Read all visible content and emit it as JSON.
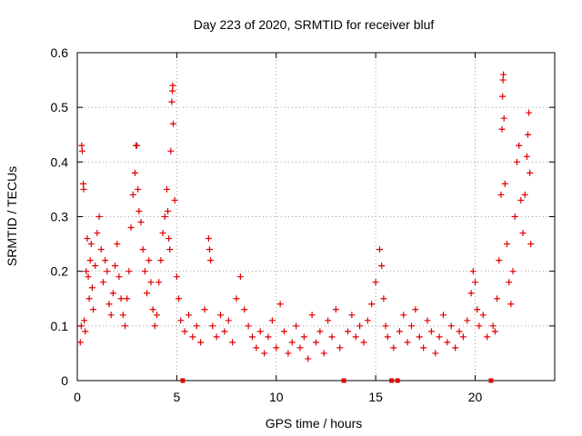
{
  "chart_data": {
    "type": "scatter",
    "title": "Day 223 of 2020, SRMTID for receiver bluf",
    "xlabel": "GPS time / hours",
    "ylabel": "SRMTID / TECUs",
    "xlim": [
      0,
      24
    ],
    "ylim": [
      0,
      0.6
    ],
    "x_ticks": [
      {
        "value": 0,
        "label": "0"
      },
      {
        "value": 5,
        "label": "5"
      },
      {
        "value": 10,
        "label": "10"
      },
      {
        "value": 15,
        "label": "15"
      },
      {
        "value": 20,
        "label": "20"
      }
    ],
    "y_ticks": [
      {
        "value": 0,
        "label": "0"
      },
      {
        "value": 0.1,
        "label": "0.1"
      },
      {
        "value": 0.2,
        "label": "0.2"
      },
      {
        "value": 0.3,
        "label": "0.3"
      },
      {
        "value": 0.4,
        "label": "0.4"
      },
      {
        "value": 0.5,
        "label": "0.5"
      },
      {
        "value": 0.6,
        "label": "0.6"
      }
    ],
    "grid": true,
    "marker": "plus",
    "color": "#e00000",
    "zero_markers": [
      5.3,
      13.4,
      15.8,
      16.1,
      20.8
    ],
    "series": [
      {
        "name": "SRMTID",
        "points": [
          [
            0.15,
            0.07
          ],
          [
            0.2,
            0.1
          ],
          [
            0.22,
            0.43
          ],
          [
            0.25,
            0.42
          ],
          [
            0.3,
            0.36
          ],
          [
            0.32,
            0.35
          ],
          [
            0.35,
            0.11
          ],
          [
            0.4,
            0.09
          ],
          [
            0.45,
            0.2
          ],
          [
            0.5,
            0.26
          ],
          [
            0.55,
            0.19
          ],
          [
            0.6,
            0.15
          ],
          [
            0.65,
            0.22
          ],
          [
            0.7,
            0.25
          ],
          [
            0.75,
            0.17
          ],
          [
            0.8,
            0.13
          ],
          [
            0.9,
            0.21
          ],
          [
            1.0,
            0.27
          ],
          [
            1.1,
            0.3
          ],
          [
            1.2,
            0.24
          ],
          [
            1.3,
            0.18
          ],
          [
            1.4,
            0.22
          ],
          [
            1.5,
            0.2
          ],
          [
            1.6,
            0.14
          ],
          [
            1.7,
            0.12
          ],
          [
            1.8,
            0.16
          ],
          [
            1.9,
            0.21
          ],
          [
            2.0,
            0.25
          ],
          [
            2.1,
            0.19
          ],
          [
            2.2,
            0.15
          ],
          [
            2.3,
            0.12
          ],
          [
            2.4,
            0.1
          ],
          [
            2.5,
            0.15
          ],
          [
            2.6,
            0.2
          ],
          [
            2.7,
            0.28
          ],
          [
            2.8,
            0.34
          ],
          [
            2.9,
            0.38
          ],
          [
            2.95,
            0.43
          ],
          [
            3.0,
            0.43
          ],
          [
            3.05,
            0.35
          ],
          [
            3.1,
            0.31
          ],
          [
            3.2,
            0.29
          ],
          [
            3.3,
            0.24
          ],
          [
            3.4,
            0.2
          ],
          [
            3.5,
            0.16
          ],
          [
            3.6,
            0.22
          ],
          [
            3.7,
            0.18
          ],
          [
            3.8,
            0.13
          ],
          [
            3.9,
            0.1
          ],
          [
            4.0,
            0.12
          ],
          [
            4.1,
            0.18
          ],
          [
            4.2,
            0.22
          ],
          [
            4.3,
            0.27
          ],
          [
            4.4,
            0.3
          ],
          [
            4.5,
            0.35
          ],
          [
            4.55,
            0.31
          ],
          [
            4.6,
            0.26
          ],
          [
            4.65,
            0.24
          ],
          [
            4.7,
            0.42
          ],
          [
            4.75,
            0.51
          ],
          [
            4.78,
            0.53
          ],
          [
            4.8,
            0.54
          ],
          [
            4.82,
            0.47
          ],
          [
            4.9,
            0.33
          ],
          [
            5.0,
            0.19
          ],
          [
            5.1,
            0.15
          ],
          [
            5.2,
            0.11
          ],
          [
            5.4,
            0.09
          ],
          [
            5.6,
            0.12
          ],
          [
            5.8,
            0.08
          ],
          [
            6.0,
            0.1
          ],
          [
            6.2,
            0.07
          ],
          [
            6.4,
            0.13
          ],
          [
            6.6,
            0.26
          ],
          [
            6.65,
            0.24
          ],
          [
            6.7,
            0.22
          ],
          [
            6.8,
            0.1
          ],
          [
            7.0,
            0.08
          ],
          [
            7.2,
            0.12
          ],
          [
            7.4,
            0.09
          ],
          [
            7.6,
            0.11
          ],
          [
            7.8,
            0.07
          ],
          [
            8.0,
            0.15
          ],
          [
            8.2,
            0.19
          ],
          [
            8.4,
            0.13
          ],
          [
            8.6,
            0.1
          ],
          [
            8.8,
            0.08
          ],
          [
            9.0,
            0.06
          ],
          [
            9.2,
            0.09
          ],
          [
            9.4,
            0.05
          ],
          [
            9.6,
            0.08
          ],
          [
            9.8,
            0.11
          ],
          [
            10.0,
            0.06
          ],
          [
            10.2,
            0.14
          ],
          [
            10.4,
            0.09
          ],
          [
            10.6,
            0.05
          ],
          [
            10.8,
            0.07
          ],
          [
            11.0,
            0.1
          ],
          [
            11.2,
            0.06
          ],
          [
            11.4,
            0.08
          ],
          [
            11.6,
            0.04
          ],
          [
            11.8,
            0.12
          ],
          [
            12.0,
            0.07
          ],
          [
            12.2,
            0.09
          ],
          [
            12.4,
            0.05
          ],
          [
            12.6,
            0.11
          ],
          [
            12.8,
            0.08
          ],
          [
            13.0,
            0.13
          ],
          [
            13.2,
            0.06
          ],
          [
            13.6,
            0.09
          ],
          [
            13.8,
            0.12
          ],
          [
            14.0,
            0.08
          ],
          [
            14.2,
            0.1
          ],
          [
            14.4,
            0.07
          ],
          [
            14.6,
            0.11
          ],
          [
            14.8,
            0.14
          ],
          [
            15.0,
            0.18
          ],
          [
            15.2,
            0.24
          ],
          [
            15.3,
            0.21
          ],
          [
            15.4,
            0.15
          ],
          [
            15.5,
            0.1
          ],
          [
            15.6,
            0.08
          ],
          [
            15.9,
            0.06
          ],
          [
            16.2,
            0.09
          ],
          [
            16.4,
            0.12
          ],
          [
            16.6,
            0.07
          ],
          [
            16.8,
            0.1
          ],
          [
            17.0,
            0.13
          ],
          [
            17.2,
            0.08
          ],
          [
            17.4,
            0.06
          ],
          [
            17.6,
            0.11
          ],
          [
            17.8,
            0.09
          ],
          [
            18.0,
            0.05
          ],
          [
            18.2,
            0.08
          ],
          [
            18.4,
            0.12
          ],
          [
            18.6,
            0.07
          ],
          [
            18.8,
            0.1
          ],
          [
            19.0,
            0.06
          ],
          [
            19.2,
            0.09
          ],
          [
            19.4,
            0.08
          ],
          [
            19.6,
            0.11
          ],
          [
            19.8,
            0.16
          ],
          [
            19.9,
            0.2
          ],
          [
            20.0,
            0.18
          ],
          [
            20.1,
            0.13
          ],
          [
            20.2,
            0.1
          ],
          [
            20.4,
            0.12
          ],
          [
            20.6,
            0.08
          ],
          [
            20.9,
            0.1
          ],
          [
            21.0,
            0.09
          ],
          [
            21.1,
            0.15
          ],
          [
            21.2,
            0.22
          ],
          [
            21.3,
            0.34
          ],
          [
            21.35,
            0.46
          ],
          [
            21.38,
            0.52
          ],
          [
            21.4,
            0.55
          ],
          [
            21.42,
            0.56
          ],
          [
            21.45,
            0.48
          ],
          [
            21.5,
            0.36
          ],
          [
            21.6,
            0.25
          ],
          [
            21.7,
            0.18
          ],
          [
            21.8,
            0.14
          ],
          [
            21.9,
            0.2
          ],
          [
            22.0,
            0.3
          ],
          [
            22.1,
            0.4
          ],
          [
            22.2,
            0.43
          ],
          [
            22.3,
            0.33
          ],
          [
            22.4,
            0.27
          ],
          [
            22.5,
            0.34
          ],
          [
            22.6,
            0.41
          ],
          [
            22.65,
            0.45
          ],
          [
            22.7,
            0.49
          ],
          [
            22.75,
            0.38
          ],
          [
            22.8,
            0.25
          ]
        ]
      }
    ]
  }
}
